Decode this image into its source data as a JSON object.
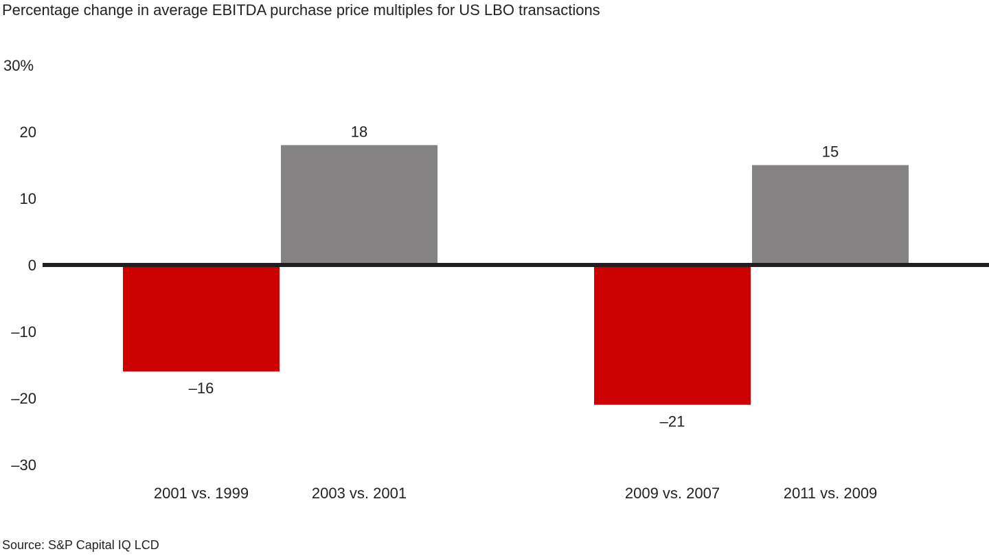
{
  "chart_data": {
    "type": "bar",
    "title": "Percentage change in average EBITDA purchase price multiples for US LBO transactions",
    "xlabel": "",
    "ylabel": "",
    "categories": [
      "2001 vs. 1999",
      "2003 vs. 2001",
      "2009 vs. 2007",
      "2011 vs. 2009"
    ],
    "values": [
      -16,
      18,
      -21,
      15
    ],
    "data_labels": [
      "–16",
      "18",
      "–21",
      "15"
    ],
    "ylim": [
      -30,
      30
    ],
    "yticks": [
      30,
      20,
      10,
      0,
      -10,
      -20,
      -30
    ],
    "ytick_labels": [
      "30%",
      "20",
      "10",
      "0",
      "–10",
      "–20",
      "–30"
    ],
    "grid": false,
    "legend": "none",
    "colors": {
      "negative": "#cc0000",
      "positive": "#848283",
      "axis": "#231f20"
    },
    "source": "Source: S&P Capital IQ LCD"
  }
}
